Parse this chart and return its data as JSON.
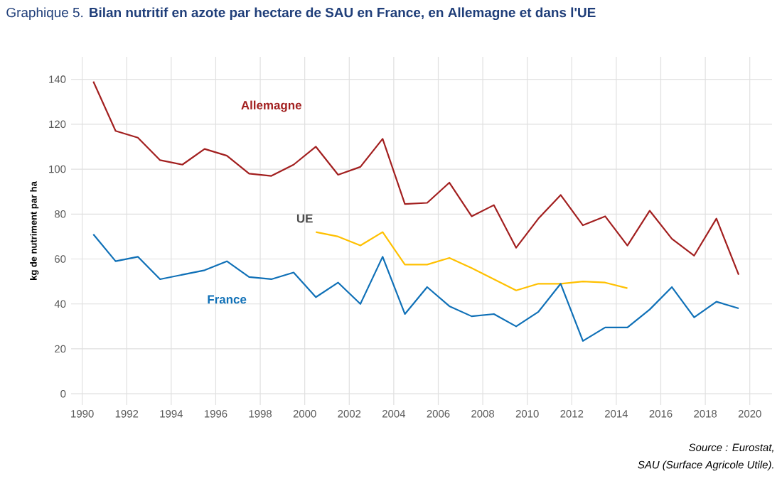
{
  "chart_data": {
    "type": "line",
    "title": "Graphique 5. **Bilan nutritif en azote par hectare de SAU en France, en Allemagne et dans l'UE**",
    "ylabel": "kg de nutriment par ha",
    "annotations": [
      "Source : Eurostat,",
      "SAU (Surface Agricole Utile)."
    ],
    "x": [
      1990.5,
      1991.5,
      1992.5,
      1993.5,
      1994.5,
      1995.5,
      1996.5,
      1997.5,
      1998.5,
      1999.5,
      2000.5,
      2001.5,
      2002.5,
      2003.5,
      2004.5,
      2005.5,
      2006.5,
      2007.5,
      2008.5,
      2009.5,
      2010.5,
      2011.5,
      2012.5,
      2013.5,
      2014.5,
      2015.5,
      2016.5,
      2017.5,
      2018.5,
      2019.5
    ],
    "series": [
      {
        "name": "Allemagne",
        "color": "#a21f1f",
        "values": [
          139,
          117,
          114,
          104,
          102,
          109,
          106,
          98,
          97,
          102,
          110,
          97.5,
          101,
          113.5,
          84.5,
          85,
          94,
          79,
          84,
          65,
          78,
          88.5,
          75,
          79,
          66,
          81.5,
          69,
          61.5,
          78,
          53
        ]
      },
      {
        "name": "UE",
        "color": "#ffc000",
        "x": [
          2000.5,
          2001.5,
          2002.5,
          2003.5,
          2004.5,
          2005.5,
          2006.5,
          2007.5,
          2008.5,
          2009.5,
          2010.5,
          2011.5,
          2012.5,
          2013.5,
          2014.5
        ],
        "values": [
          72,
          70,
          66,
          72,
          57.5,
          57.5,
          60.5,
          56,
          51,
          46,
          49,
          49,
          50,
          49.5,
          47
        ]
      },
      {
        "name": "France",
        "color": "#0f70b7",
        "values": [
          71,
          59,
          61,
          51,
          53,
          55,
          59,
          52,
          51,
          54,
          43,
          49.5,
          40,
          61,
          35.5,
          47.5,
          39,
          34.5,
          35.5,
          30,
          36.5,
          49,
          23.5,
          29.5,
          29.5,
          37.5,
          47.5,
          34,
          41,
          38
        ]
      }
    ],
    "xlim": [
      1989.5,
      2021
    ],
    "ylim": [
      -5,
      150
    ],
    "xticks": [
      1990,
      1992,
      1994,
      1996,
      1998,
      2000,
      2002,
      2004,
      2006,
      2008,
      2010,
      2012,
      2014,
      2016,
      2018,
      2020
    ],
    "yticks": [
      0,
      20,
      40,
      60,
      80,
      100,
      120,
      140
    ],
    "grid": true,
    "legend": false,
    "marker": "none",
    "line_style": "solid"
  }
}
